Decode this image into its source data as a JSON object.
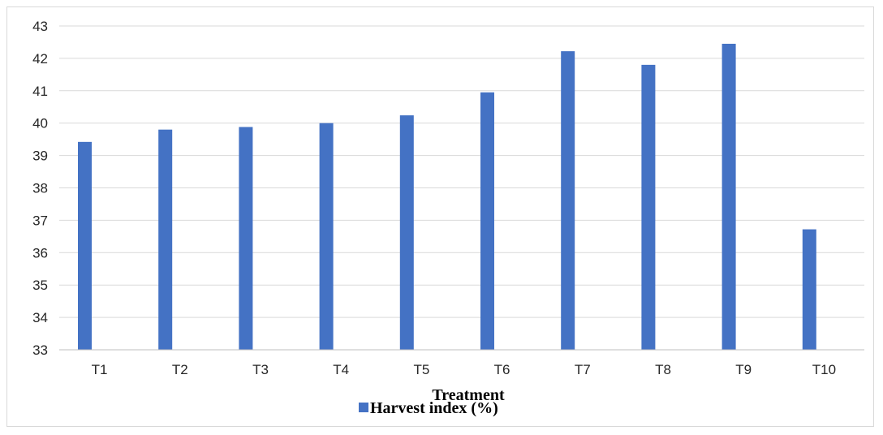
{
  "chart_data": {
    "type": "bar",
    "categories": [
      "T1",
      "T2",
      "T3",
      "T4",
      "T5",
      "T6",
      "T7",
      "T8",
      "T9",
      "T10"
    ],
    "series": [
      {
        "name": "Harvest index (%)",
        "color": "#4472C4",
        "values": [
          39.42,
          39.8,
          39.88,
          40.0,
          40.24,
          40.95,
          42.22,
          41.8,
          42.45,
          36.72
        ]
      }
    ],
    "xlabel": "Treatment",
    "ylabel": "",
    "ylim": [
      33,
      43
    ],
    "yticks": [
      33,
      34,
      35,
      36,
      37,
      38,
      39,
      40,
      41,
      42,
      43
    ],
    "grid": true,
    "legend_position": "bottom"
  }
}
